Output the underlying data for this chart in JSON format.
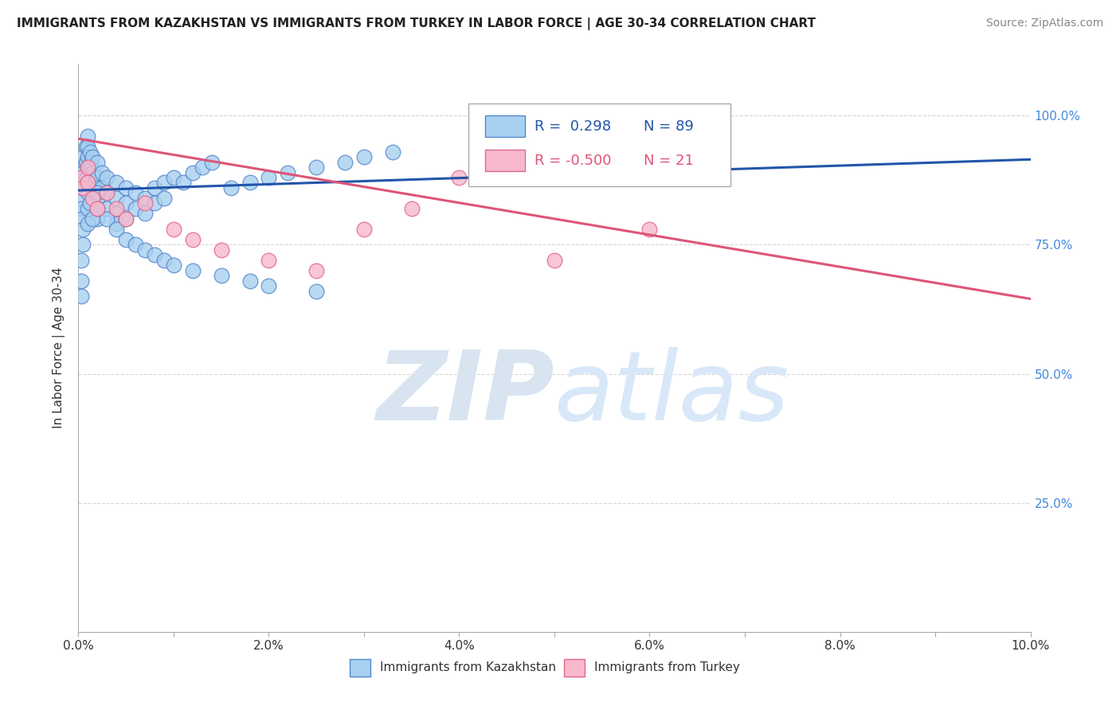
{
  "title": "IMMIGRANTS FROM KAZAKHSTAN VS IMMIGRANTS FROM TURKEY IN LABOR FORCE | AGE 30-34 CORRELATION CHART",
  "source": "Source: ZipAtlas.com",
  "ylabel": "In Labor Force | Age 30-34",
  "xlim": [
    0.0,
    0.1
  ],
  "ylim": [
    0.0,
    1.1
  ],
  "xtick_vals": [
    0.0,
    0.01,
    0.02,
    0.03,
    0.04,
    0.05,
    0.06,
    0.07,
    0.08,
    0.09,
    0.1
  ],
  "xtick_labels": [
    "0.0%",
    "",
    "2.0%",
    "",
    "4.0%",
    "",
    "6.0%",
    "",
    "8.0%",
    "",
    "10.0%"
  ],
  "ytick_vals": [
    0.25,
    0.5,
    0.75,
    1.0
  ],
  "ytick_labels": [
    "25.0%",
    "50.0%",
    "75.0%",
    "100.0%"
  ],
  "kaz_color": "#a8d0f0",
  "kaz_edge_color": "#5588cc",
  "turkey_color": "#f8b8cc",
  "turkey_edge_color": "#e06888",
  "kaz_line_color": "#2255aa",
  "turkey_line_color": "#dd5577",
  "kaz_R": 0.298,
  "kaz_N": 89,
  "turkey_R": -0.5,
  "turkey_N": 21,
  "legend_label_kaz": "Immigrants from Kazakhstan",
  "legend_label_turkey": "Immigrants from Turkey",
  "kaz_line_x0": 0.0,
  "kaz_line_x1": 0.1,
  "kaz_line_y0": 0.855,
  "kaz_line_y1": 0.915,
  "turkey_line_x0": 0.0,
  "turkey_line_x1": 0.1,
  "turkey_line_y0": 0.955,
  "turkey_line_y1": 0.645,
  "kaz_x": [
    0.0003,
    0.0003,
    0.0003,
    0.0003,
    0.0003,
    0.0003,
    0.0005,
    0.0005,
    0.0005,
    0.0008,
    0.0008,
    0.0008,
    0.001,
    0.001,
    0.001,
    0.001,
    0.001,
    0.001,
    0.0012,
    0.0012,
    0.0013,
    0.0013,
    0.0015,
    0.0015,
    0.0015,
    0.0017,
    0.002,
    0.002,
    0.002,
    0.002,
    0.002,
    0.002,
    0.0025,
    0.0025,
    0.003,
    0.003,
    0.003,
    0.004,
    0.004,
    0.004,
    0.004,
    0.005,
    0.005,
    0.005,
    0.006,
    0.006,
    0.007,
    0.007,
    0.008,
    0.008,
    0.009,
    0.009,
    0.01,
    0.011,
    0.012,
    0.013,
    0.014,
    0.016,
    0.018,
    0.02,
    0.022,
    0.025,
    0.028,
    0.03,
    0.033,
    0.0003,
    0.0003,
    0.0003,
    0.0005,
    0.0005,
    0.001,
    0.001,
    0.0012,
    0.0015,
    0.002,
    0.002,
    0.003,
    0.004,
    0.005,
    0.006,
    0.007,
    0.008,
    0.009,
    0.01,
    0.012,
    0.015,
    0.018,
    0.02,
    0.025
  ],
  "kaz_y": [
    0.9,
    0.88,
    0.86,
    0.84,
    0.82,
    0.8,
    0.92,
    0.89,
    0.86,
    0.94,
    0.91,
    0.88,
    0.96,
    0.94,
    0.92,
    0.9,
    0.88,
    0.85,
    0.93,
    0.9,
    0.91,
    0.88,
    0.92,
    0.89,
    0.86,
    0.87,
    0.91,
    0.88,
    0.86,
    0.84,
    0.82,
    0.8,
    0.89,
    0.86,
    0.88,
    0.85,
    0.82,
    0.87,
    0.84,
    0.81,
    0.79,
    0.86,
    0.83,
    0.8,
    0.85,
    0.82,
    0.84,
    0.81,
    0.86,
    0.83,
    0.87,
    0.84,
    0.88,
    0.87,
    0.89,
    0.9,
    0.91,
    0.86,
    0.87,
    0.88,
    0.89,
    0.9,
    0.91,
    0.92,
    0.93,
    0.72,
    0.68,
    0.65,
    0.78,
    0.75,
    0.82,
    0.79,
    0.83,
    0.8,
    0.85,
    0.82,
    0.8,
    0.78,
    0.76,
    0.75,
    0.74,
    0.73,
    0.72,
    0.71,
    0.7,
    0.69,
    0.68,
    0.67,
    0.66
  ],
  "turkey_x": [
    0.0003,
    0.0005,
    0.001,
    0.001,
    0.0015,
    0.002,
    0.003,
    0.004,
    0.005,
    0.007,
    0.01,
    0.012,
    0.015,
    0.02,
    0.025,
    0.03,
    0.035,
    0.04,
    0.05,
    0.06,
    0.065
  ],
  "turkey_y": [
    0.88,
    0.86,
    0.9,
    0.87,
    0.84,
    0.82,
    0.85,
    0.82,
    0.8,
    0.83,
    0.78,
    0.76,
    0.74,
    0.72,
    0.7,
    0.78,
    0.82,
    0.88,
    0.72,
    0.78,
    1.0
  ]
}
